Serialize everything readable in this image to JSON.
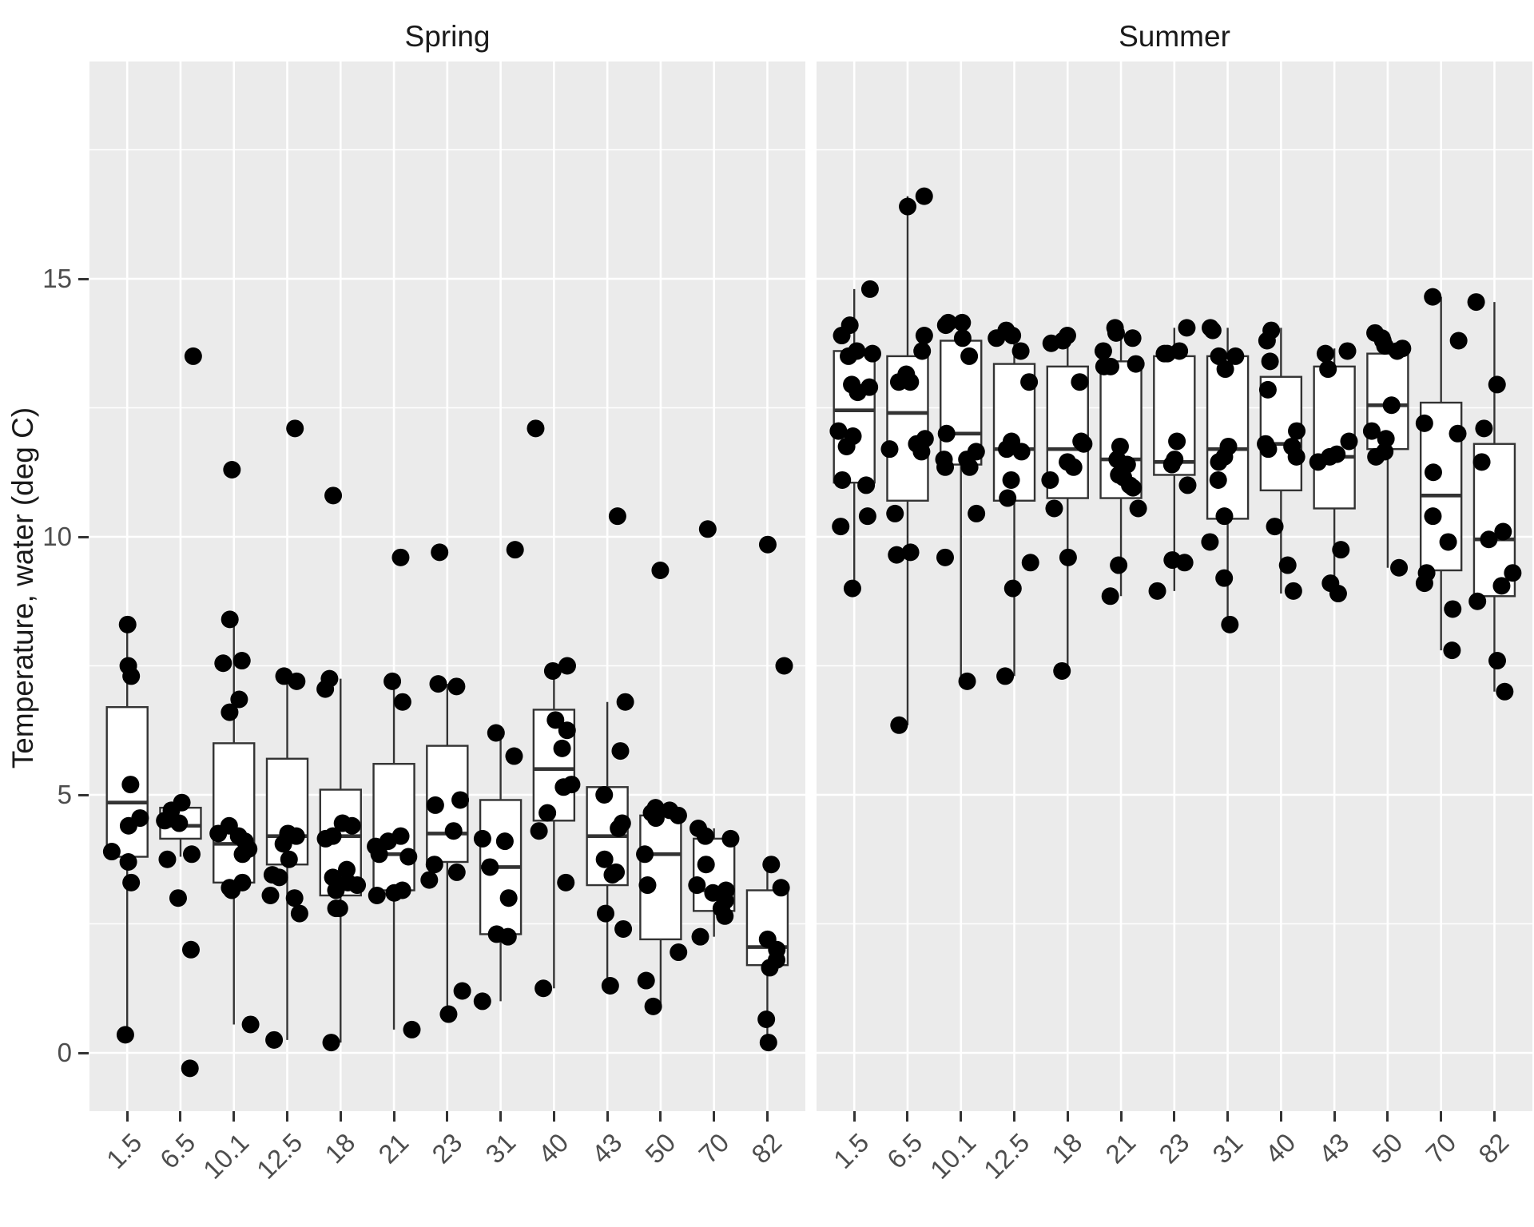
{
  "chart_data": {
    "type": "boxplot",
    "title": "",
    "xlabel": "",
    "ylabel": "Temperature, water (deg C)",
    "y_axis": {
      "tick_values": [
        0,
        5,
        10,
        15
      ],
      "tick_labels": [
        "0",
        "5",
        "10",
        "15"
      ],
      "minor_values": [
        2.5,
        7.5,
        12.5,
        17.5
      ],
      "value_at_panel_top": 19.21,
      "value_at_panel_bottom": -1.13,
      "grid": "on"
    },
    "categories": [
      "1.5",
      "6.5",
      "10.1",
      "12.5",
      "18",
      "21",
      "23",
      "31",
      "40",
      "43",
      "50",
      "70",
      "82"
    ],
    "facets": [
      {
        "label": "Spring",
        "boxes": [
          {
            "category": "1.5",
            "whisker_low": 0.35,
            "q1": 3.8,
            "median": 4.85,
            "q3": 6.7,
            "whisker_high": 8.3,
            "points": [
              8.3,
              7.5,
              7.3,
              5.2,
              4.55,
              4.4,
              3.9,
              3.7,
              3.3,
              0.35
            ]
          },
          {
            "category": "6.5",
            "whisker_low": 3.8,
            "q1": 4.15,
            "median": 4.4,
            "q3": 4.75,
            "whisker_high": 4.85,
            "points": [
              13.5,
              4.85,
              4.7,
              4.5,
              4.45,
              3.85,
              3.75,
              3.0,
              2.0,
              -0.3
            ]
          },
          {
            "category": "10.1",
            "whisker_low": 0.55,
            "q1": 3.3,
            "median": 4.05,
            "q3": 6.0,
            "whisker_high": 8.4,
            "points": [
              11.3,
              8.4,
              7.6,
              7.55,
              6.85,
              6.6,
              4.4,
              4.25,
              4.2,
              4.1,
              3.95,
              3.85,
              3.3,
              3.2,
              3.15,
              0.55
            ]
          },
          {
            "category": "12.5",
            "whisker_low": 0.25,
            "q1": 3.65,
            "median": 4.2,
            "q3": 5.7,
            "whisker_high": 7.3,
            "points": [
              12.1,
              7.3,
              7.2,
              4.25,
              4.2,
              4.05,
              3.75,
              3.45,
              3.4,
              3.05,
              3.0,
              2.7,
              0.25
            ]
          },
          {
            "category": "18",
            "whisker_low": 0.2,
            "q1": 3.05,
            "median": 4.2,
            "q3": 5.1,
            "whisker_high": 7.25,
            "points": [
              10.8,
              7.25,
              7.05,
              4.45,
              4.4,
              4.2,
              4.15,
              3.55,
              3.4,
              3.3,
              3.25,
              3.15,
              2.8,
              2.8,
              0.2
            ]
          },
          {
            "category": "21",
            "whisker_low": 0.45,
            "q1": 3.15,
            "median": 3.85,
            "q3": 5.6,
            "whisker_high": 7.2,
            "points": [
              9.6,
              7.2,
              6.8,
              4.2,
              4.1,
              4.0,
              3.85,
              3.8,
              3.15,
              3.1,
              3.05,
              0.45
            ]
          },
          {
            "category": "23",
            "whisker_low": 0.75,
            "q1": 3.7,
            "median": 4.25,
            "q3": 5.95,
            "whisker_high": 7.15,
            "points": [
              9.7,
              7.15,
              7.1,
              4.9,
              4.8,
              4.3,
              3.65,
              3.5,
              3.35,
              1.2,
              0.75
            ]
          },
          {
            "category": "31",
            "whisker_low": 1.0,
            "q1": 2.3,
            "median": 3.6,
            "q3": 4.9,
            "whisker_high": 6.2,
            "points": [
              9.75,
              6.2,
              5.75,
              4.15,
              4.1,
              3.6,
              3.0,
              2.3,
              2.25,
              1.0
            ]
          },
          {
            "category": "40",
            "whisker_low": 1.25,
            "q1": 4.5,
            "median": 5.5,
            "q3": 6.65,
            "whisker_high": 7.5,
            "points": [
              12.1,
              7.5,
              7.4,
              6.45,
              6.25,
              5.9,
              5.2,
              5.15,
              4.65,
              4.3,
              3.3,
              1.25
            ]
          },
          {
            "category": "43",
            "whisker_low": 1.3,
            "q1": 3.25,
            "median": 4.2,
            "q3": 5.15,
            "whisker_high": 6.8,
            "points": [
              10.4,
              6.8,
              5.85,
              5.0,
              4.45,
              4.35,
              3.75,
              3.5,
              3.45,
              2.7,
              2.4,
              1.3
            ]
          },
          {
            "category": "50",
            "whisker_low": 0.9,
            "q1": 2.2,
            "median": 3.85,
            "q3": 4.6,
            "whisker_high": 4.75,
            "points": [
              9.35,
              4.75,
              4.7,
              4.65,
              4.6,
              4.55,
              3.85,
              3.25,
              1.95,
              1.4,
              0.9
            ]
          },
          {
            "category": "70",
            "whisker_low": 2.25,
            "q1": 2.75,
            "median": 3.15,
            "q3": 4.15,
            "whisker_high": 4.35,
            "points": [
              10.15,
              4.35,
              4.2,
              4.15,
              3.65,
              3.25,
              3.15,
              3.1,
              2.95,
              2.8,
              2.65,
              2.25
            ]
          },
          {
            "category": "82",
            "whisker_low": 0.2,
            "q1": 1.7,
            "median": 2.05,
            "q3": 3.15,
            "whisker_high": 3.65,
            "points": [
              9.85,
              7.5,
              3.65,
              3.2,
              2.2,
              2.0,
              1.8,
              1.65,
              0.65,
              0.2
            ]
          }
        ]
      },
      {
        "label": "Summer",
        "boxes": [
          {
            "category": "1.5",
            "whisker_low": 9.0,
            "q1": 11.05,
            "median": 12.45,
            "q3": 13.6,
            "whisker_high": 14.8,
            "points": [
              14.8,
              14.1,
              13.9,
              13.6,
              13.55,
              13.5,
              12.95,
              12.9,
              12.8,
              12.05,
              11.95,
              11.75,
              11.1,
              11.0,
              10.4,
              10.2,
              9.0
            ]
          },
          {
            "category": "6.5",
            "whisker_low": 6.35,
            "q1": 10.7,
            "median": 12.4,
            "q3": 13.5,
            "whisker_high": 16.6,
            "points": [
              16.6,
              16.4,
              13.9,
              13.6,
              13.15,
              13.0,
              13.0,
              11.9,
              11.8,
              11.7,
              11.65,
              10.45,
              9.7,
              9.65,
              6.35
            ]
          },
          {
            "category": "10.1",
            "whisker_low": 7.2,
            "q1": 11.4,
            "median": 12.0,
            "q3": 13.8,
            "whisker_high": 14.15,
            "points": [
              14.15,
              14.15,
              14.1,
              13.85,
              13.5,
              12.0,
              11.65,
              11.5,
              11.5,
              11.35,
              11.35,
              10.45,
              9.6,
              7.2
            ]
          },
          {
            "category": "12.5",
            "whisker_low": 7.3,
            "q1": 10.7,
            "median": 11.7,
            "q3": 13.35,
            "whisker_high": 14.0,
            "points": [
              14.0,
              13.9,
              13.85,
              13.6,
              13.0,
              11.85,
              11.7,
              11.65,
              11.1,
              10.75,
              9.5,
              9.0,
              7.3
            ]
          },
          {
            "category": "18",
            "whisker_low": 7.4,
            "q1": 10.75,
            "median": 11.7,
            "q3": 13.3,
            "whisker_high": 13.9,
            "points": [
              13.9,
              13.8,
              13.75,
              13.0,
              11.85,
              11.8,
              11.45,
              11.35,
              11.1,
              10.55,
              9.6,
              7.4
            ]
          },
          {
            "category": "21",
            "whisker_low": 8.85,
            "q1": 10.75,
            "median": 11.5,
            "q3": 13.4,
            "whisker_high": 14.05,
            "points": [
              14.05,
              13.95,
              13.85,
              13.6,
              13.35,
              13.3,
              13.3,
              11.75,
              11.5,
              11.4,
              11.2,
              11.15,
              11.0,
              10.95,
              10.55,
              9.45,
              8.85
            ]
          },
          {
            "category": "23",
            "whisker_low": 8.95,
            "q1": 11.2,
            "median": 11.45,
            "q3": 13.5,
            "whisker_high": 14.05,
            "points": [
              14.05,
              13.6,
              13.55,
              13.55,
              11.85,
              11.5,
              11.4,
              11.0,
              9.55,
              9.5,
              8.95
            ]
          },
          {
            "category": "31",
            "whisker_low": 8.2,
            "q1": 10.35,
            "median": 11.7,
            "q3": 13.5,
            "whisker_high": 14.05,
            "points": [
              14.05,
              14.0,
              13.5,
              13.5,
              13.25,
              11.75,
              11.55,
              11.45,
              11.1,
              10.4,
              9.9,
              9.2,
              8.3
            ]
          },
          {
            "category": "40",
            "whisker_low": 8.9,
            "q1": 10.9,
            "median": 11.8,
            "q3": 13.1,
            "whisker_high": 14.05,
            "points": [
              14.0,
              13.8,
              13.4,
              12.85,
              12.05,
              11.8,
              11.75,
              11.7,
              11.55,
              10.2,
              9.45,
              8.95
            ]
          },
          {
            "category": "43",
            "whisker_low": 8.9,
            "q1": 10.55,
            "median": 11.55,
            "q3": 13.3,
            "whisker_high": 13.65,
            "points": [
              13.6,
              13.55,
              13.25,
              11.85,
              11.6,
              11.55,
              11.45,
              9.75,
              9.1,
              8.9
            ]
          },
          {
            "category": "50",
            "whisker_low": 9.4,
            "q1": 11.7,
            "median": 12.55,
            "q3": 13.55,
            "whisker_high": 13.95,
            "points": [
              13.95,
              13.85,
              13.8,
              13.7,
              13.65,
              13.6,
              12.55,
              12.05,
              11.9,
              11.65,
              11.55,
              9.4
            ]
          },
          {
            "category": "70",
            "whisker_low": 7.8,
            "q1": 9.35,
            "median": 10.8,
            "q3": 12.6,
            "whisker_high": 14.65,
            "points": [
              14.65,
              13.8,
              12.2,
              12.0,
              11.25,
              10.4,
              9.9,
              9.3,
              9.1,
              8.6,
              7.8
            ]
          },
          {
            "category": "82",
            "whisker_low": 7.0,
            "q1": 8.85,
            "median": 9.95,
            "q3": 11.8,
            "whisker_high": 14.55,
            "points": [
              14.55,
              12.95,
              12.1,
              11.45,
              10.1,
              9.95,
              9.3,
              9.05,
              8.75,
              7.6,
              7.0
            ]
          }
        ]
      }
    ],
    "legend": "none"
  },
  "style": {
    "panel_bg": "#EBEBEB",
    "strip_bg": "#D5D5D5",
    "grid_color": "#FFFFFF",
    "box_stroke": "#333333",
    "box_fill": "#FFFFFF",
    "point_color": "#000000",
    "tick_text_color": "#4D4D4D",
    "title_text_color": "#1A1A1A"
  }
}
